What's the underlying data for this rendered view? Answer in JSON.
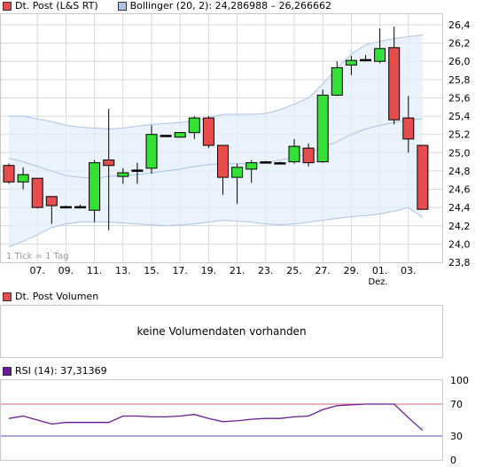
{
  "price_legend": {
    "series": "Dt. Post (L&S RT)",
    "series_color": "#e84c4c",
    "band": "Bollinger (20, 2): 24,286988 – 26,266662",
    "band_color": "#a9c4e6"
  },
  "tick_note": "1 Tick = 1 Tag",
  "volume_legend": {
    "series": "Dt. Post Volumen",
    "color": "#e84c4c"
  },
  "volume_message": "keine Volumendaten vorhanden",
  "rsi_legend": {
    "series": "RSI (14): 37,31369",
    "color": "#6a1b9a"
  },
  "chart_data": [
    {
      "type": "candlestick",
      "title": "Dt. Post (L&S RT)",
      "ylim": [
        23.8,
        26.6
      ],
      "y_ticks": [
        "23,8",
        "24,0",
        "24,2",
        "24,4",
        "24,6",
        "24,8",
        "25,0",
        "25,2",
        "25,4",
        "25,6",
        "25,8",
        "26,0",
        "26,2",
        "26,4"
      ],
      "x_ticks": [
        "07.",
        "09.",
        "11.",
        "13.",
        "15.",
        "17.",
        "19.",
        "21.",
        "23.",
        "25.",
        "27.",
        "29.",
        "01.",
        "03."
      ],
      "x_tick_sub": {
        "01.": "Dez."
      },
      "colors": {
        "up": "#33e033",
        "down": "#e84c4c",
        "doji": "#000000"
      },
      "candles": [
        {
          "o": 24.86,
          "h": 24.88,
          "l": 24.66,
          "c": 24.68
        },
        {
          "o": 24.68,
          "h": 24.84,
          "l": 24.6,
          "c": 24.76
        },
        {
          "o": 24.72,
          "h": 24.72,
          "l": 24.39,
          "c": 24.4
        },
        {
          "o": 24.52,
          "h": 24.52,
          "l": 24.22,
          "c": 24.42
        },
        {
          "o": 24.41,
          "h": 24.42,
          "l": 24.4,
          "c": 24.41
        },
        {
          "o": 24.41,
          "h": 24.43,
          "l": 24.39,
          "c": 24.41
        },
        {
          "o": 24.37,
          "h": 24.92,
          "l": 24.24,
          "c": 24.89
        },
        {
          "o": 24.92,
          "h": 25.48,
          "l": 24.15,
          "c": 24.86
        },
        {
          "o": 24.74,
          "h": 24.83,
          "l": 24.66,
          "c": 24.78
        },
        {
          "o": 24.81,
          "h": 24.89,
          "l": 24.66,
          "c": 24.81
        },
        {
          "o": 24.83,
          "h": 25.3,
          "l": 24.77,
          "c": 25.2
        },
        {
          "o": 25.19,
          "h": 25.19,
          "l": 25.18,
          "c": 25.19
        },
        {
          "o": 25.17,
          "h": 25.22,
          "l": 25.17,
          "c": 25.22
        },
        {
          "o": 25.22,
          "h": 25.4,
          "l": 25.15,
          "c": 25.38
        },
        {
          "o": 25.38,
          "h": 25.4,
          "l": 25.05,
          "c": 25.08
        },
        {
          "o": 25.08,
          "h": 25.08,
          "l": 24.54,
          "c": 24.73
        },
        {
          "o": 24.73,
          "h": 24.88,
          "l": 24.44,
          "c": 24.84
        },
        {
          "o": 24.82,
          "h": 24.92,
          "l": 24.67,
          "c": 24.89
        },
        {
          "o": 24.9,
          "h": 24.91,
          "l": 24.89,
          "c": 24.9
        },
        {
          "o": 24.89,
          "h": 24.9,
          "l": 24.88,
          "c": 24.89
        },
        {
          "o": 24.9,
          "h": 25.15,
          "l": 24.88,
          "c": 25.07
        },
        {
          "o": 25.05,
          "h": 25.1,
          "l": 24.85,
          "c": 24.89
        },
        {
          "o": 24.9,
          "h": 25.69,
          "l": 24.89,
          "c": 25.63
        },
        {
          "o": 25.63,
          "h": 26.0,
          "l": 25.62,
          "c": 25.93
        },
        {
          "o": 25.96,
          "h": 26.06,
          "l": 25.85,
          "c": 26.01
        },
        {
          "o": 26.01,
          "h": 26.07,
          "l": 26.0,
          "c": 26.02
        },
        {
          "o": 26.0,
          "h": 26.36,
          "l": 25.98,
          "c": 26.14
        },
        {
          "o": 26.15,
          "h": 26.38,
          "l": 25.31,
          "c": 25.36
        },
        {
          "o": 25.38,
          "h": 25.62,
          "l": 25.0,
          "c": 25.15
        },
        {
          "o": 25.08,
          "h": 25.08,
          "l": 24.38,
          "c": 24.38
        }
      ],
      "bollinger": {
        "upper": [
          25.4,
          25.4,
          25.37,
          25.34,
          25.3,
          25.28,
          25.27,
          25.26,
          25.27,
          25.29,
          25.31,
          25.32,
          25.33,
          25.35,
          25.38,
          25.42,
          25.42,
          25.42,
          25.43,
          25.47,
          25.53,
          25.6,
          25.75,
          25.93,
          26.08,
          26.18,
          26.22,
          26.25,
          26.27,
          26.29
        ],
        "middle": [
          24.94,
          24.9,
          24.85,
          24.8,
          24.75,
          24.73,
          24.72,
          24.74,
          24.75,
          24.76,
          24.78,
          24.8,
          24.82,
          24.85,
          24.87,
          24.88,
          24.88,
          24.88,
          24.89,
          24.92,
          24.95,
          24.99,
          25.06,
          25.12,
          25.2,
          25.26,
          25.3,
          25.33,
          25.36,
          25.37
        ],
        "lower": [
          23.97,
          24.03,
          24.1,
          24.18,
          24.22,
          24.24,
          24.24,
          24.24,
          24.23,
          24.22,
          24.21,
          24.2,
          24.21,
          24.22,
          24.24,
          24.26,
          24.25,
          24.24,
          24.22,
          24.21,
          24.22,
          24.24,
          24.26,
          24.28,
          24.3,
          24.31,
          24.33,
          24.36,
          24.4,
          24.29
        ]
      }
    },
    {
      "type": "line",
      "title": "RSI (14): 37,31369",
      "ylim": [
        0,
        100
      ],
      "y_ticks": [
        "0",
        "30",
        "70",
        "100"
      ],
      "reference_lines": [
        {
          "value": 70,
          "color": "#e06070"
        },
        {
          "value": 30,
          "color": "#5050c0"
        }
      ],
      "series": [
        {
          "name": "RSI (14)",
          "color": "#6a1b9a",
          "values": [
            52,
            55,
            50,
            45,
            47,
            47,
            47,
            47,
            55,
            55,
            54,
            54,
            55,
            57,
            52,
            48,
            49,
            51,
            52,
            52,
            54,
            55,
            63,
            68,
            69,
            70,
            70,
            70,
            53,
            37
          ]
        }
      ]
    }
  ]
}
